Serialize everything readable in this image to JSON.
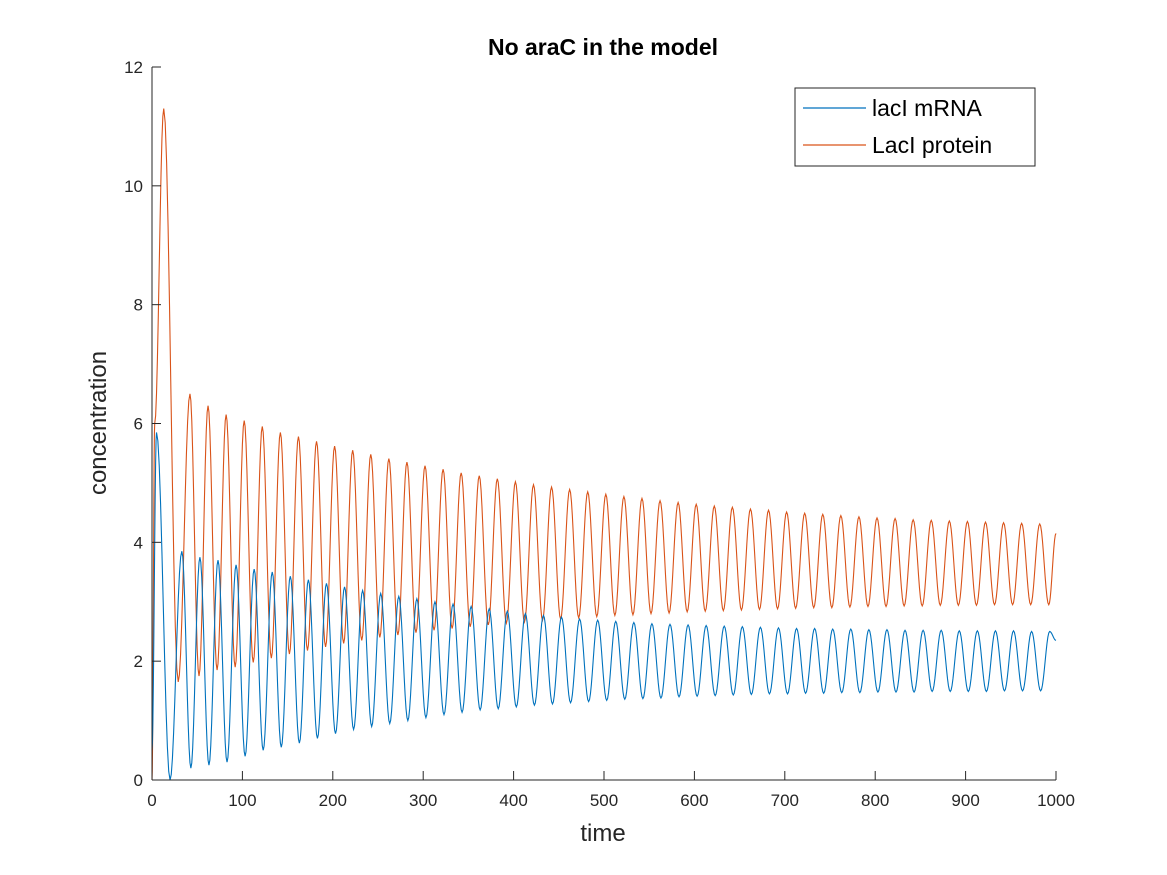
{
  "chart_data": {
    "type": "line",
    "title": "No araC in the model",
    "xlabel": "time",
    "ylabel": "concentration",
    "xlim": [
      0,
      1000
    ],
    "ylim": [
      0,
      12
    ],
    "xticks": [
      0,
      100,
      200,
      300,
      400,
      500,
      600,
      700,
      800,
      900,
      1000
    ],
    "yticks": [
      0,
      2,
      4,
      6,
      8,
      10,
      12
    ],
    "grid": false,
    "legend_position": "top-right",
    "colors": {
      "mrna": "#0072BD",
      "protein": "#D95319",
      "axis": "#262626"
    },
    "series": [
      {
        "name": "lacI mRNA",
        "color": "#0072BD",
        "x": [
          0,
          5,
          12,
          18,
          22,
          25,
          33,
          41,
          52,
          60,
          70,
          80,
          95,
          110,
          140,
          180,
          220,
          300,
          400,
          500,
          600,
          700,
          800,
          900,
          1000
        ],
        "peaks": [
          5.85,
          3.85,
          3.75,
          3.7,
          3.62,
          3.55,
          3.5,
          3.43,
          3.37,
          3.31,
          3.25,
          3.19,
          3.14,
          3.09,
          3.05,
          3.0,
          2.96,
          2.92,
          2.88,
          2.84,
          2.8,
          2.77,
          2.74,
          2.71,
          2.69,
          2.67,
          2.65,
          2.63,
          2.62,
          2.61,
          2.6,
          2.59,
          2.58,
          2.57,
          2.56,
          2.55,
          2.55,
          2.54,
          2.54,
          2.53,
          2.53,
          2.52,
          2.52,
          2.52,
          2.51,
          2.51,
          2.51,
          2.51,
          2.5,
          2.5
        ],
        "troughs": [
          0.0,
          0.2,
          0.25,
          0.3,
          0.4,
          0.5,
          0.55,
          0.62,
          0.7,
          0.78,
          0.85,
          0.9,
          0.95,
          1.0,
          1.05,
          1.1,
          1.14,
          1.18,
          1.2,
          1.23,
          1.26,
          1.28,
          1.3,
          1.32,
          1.34,
          1.36,
          1.37,
          1.38,
          1.4,
          1.41,
          1.42,
          1.43,
          1.44,
          1.45,
          1.45,
          1.46,
          1.46,
          1.47,
          1.47,
          1.48,
          1.48,
          1.48,
          1.49,
          1.49,
          1.49,
          1.49,
          1.5,
          1.5,
          1.5,
          1.5
        ],
        "end_value": 2.35
      },
      {
        "name": "LacI protein",
        "color": "#D95319",
        "peaks": [
          11.3,
          6.5,
          6.3,
          6.15,
          6.05,
          5.95,
          5.85,
          5.78,
          5.7,
          5.62,
          5.55,
          5.48,
          5.41,
          5.35,
          5.29,
          5.23,
          5.17,
          5.12,
          5.07,
          5.02,
          4.97,
          4.93,
          4.89,
          4.85,
          4.81,
          4.77,
          4.74,
          4.7,
          4.67,
          4.64,
          4.61,
          4.59,
          4.56,
          4.54,
          4.51,
          4.49,
          4.47,
          4.45,
          4.43,
          4.41,
          4.4,
          4.38,
          4.37,
          4.36,
          4.35,
          4.34,
          4.33,
          4.32,
          4.31,
          4.3
        ],
        "troughs": [
          1.65,
          1.75,
          1.85,
          1.9,
          1.98,
          2.05,
          2.12,
          2.18,
          2.24,
          2.3,
          2.35,
          2.4,
          2.44,
          2.48,
          2.52,
          2.55,
          2.58,
          2.61,
          2.64,
          2.66,
          2.69,
          2.71,
          2.73,
          2.75,
          2.77,
          2.78,
          2.8,
          2.81,
          2.83,
          2.84,
          2.85,
          2.86,
          2.87,
          2.88,
          2.89,
          2.9,
          2.9,
          2.91,
          2.92,
          2.92,
          2.93,
          2.93,
          2.94,
          2.94,
          2.94,
          2.95,
          2.95,
          2.95,
          2.95,
          2.95
        ],
        "end_value": 4.15
      }
    ],
    "oscillation": {
      "first_peak_time": 12,
      "period": 20.0
    }
  }
}
